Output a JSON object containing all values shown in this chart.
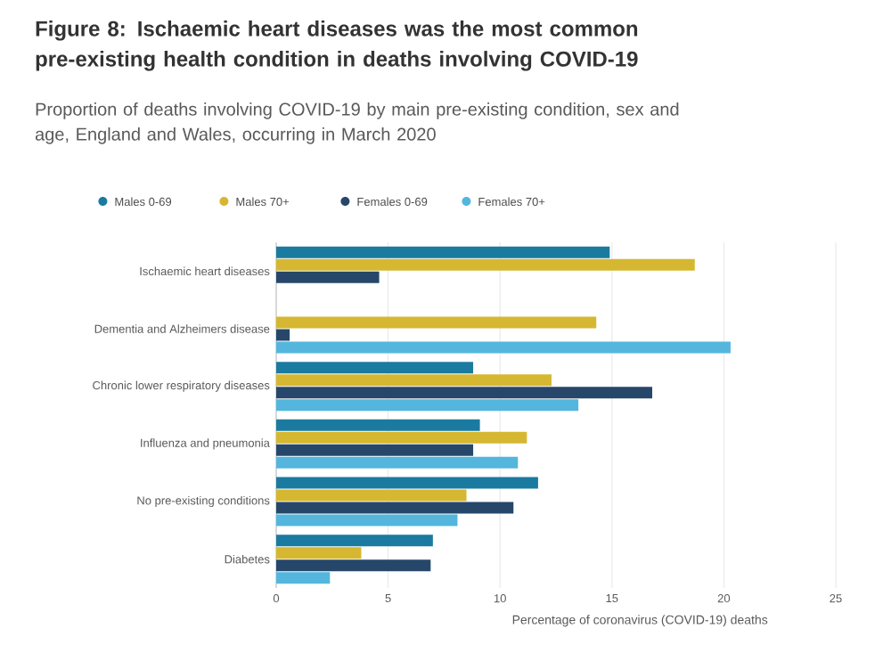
{
  "chart_data": {
    "type": "bar",
    "orientation": "horizontal",
    "title": "Figure 8: Ischaemic heart diseases was the most common pre-existing health condition in deaths involving COVID-19",
    "subtitle": "Proportion of deaths involving COVID-19 by main pre-existing condition, sex and age, England and Wales, occurring in March 2020",
    "xlabel": "Percentage of coronavirus (COVID-19) deaths",
    "categories": [
      "Ischaemic heart diseases",
      "Dementia and Alzheimers disease",
      "Chronic lower respiratory diseases",
      "Influenza and pneumonia",
      "No pre-existing conditions",
      "Diabetes"
    ],
    "series": [
      {
        "name": "Males 0-69",
        "color": "#1b7aa0",
        "values": [
          14.9,
          null,
          8.8,
          9.1,
          11.7,
          7.0
        ]
      },
      {
        "name": "Males 70+",
        "color": "#d6b731",
        "values": [
          18.7,
          14.3,
          12.3,
          11.2,
          8.5,
          3.8
        ]
      },
      {
        "name": "Females 0-69",
        "color": "#26476a",
        "values": [
          4.6,
          0.6,
          16.8,
          8.8,
          10.6,
          6.9
        ]
      },
      {
        "name": "Females 70+",
        "color": "#54b6dd",
        "values": [
          null,
          20.3,
          13.5,
          10.8,
          8.1,
          2.4
        ]
      }
    ],
    "xlim": [
      0,
      25
    ],
    "xticks": [
      0,
      5,
      10,
      15,
      20,
      25
    ],
    "grid": "x",
    "legend": "top"
  }
}
